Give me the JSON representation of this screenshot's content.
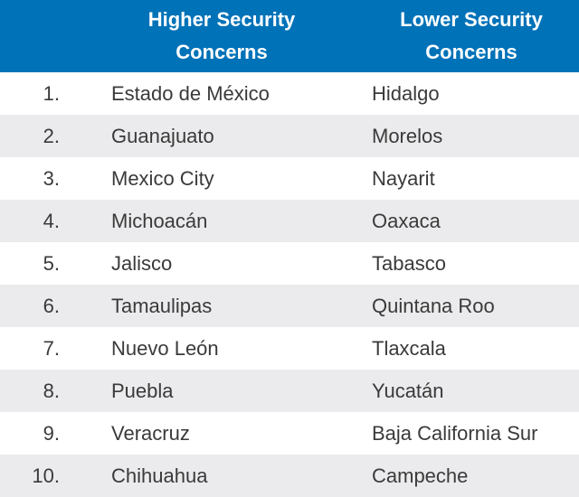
{
  "header": {
    "col1": "Higher Security\nConcerns",
    "col1_line1": "Higher Security",
    "col1_line2": "Concerns",
    "col2_line1": "Lower Security",
    "col2_line2": "Concerns"
  },
  "colors": {
    "header_bg": "#0072b8",
    "stripe": "#ebebed"
  },
  "rows": [
    {
      "rank": "1.",
      "higher": "Estado de México",
      "lower": "Hidalgo"
    },
    {
      "rank": "2.",
      "higher": "Guanajuato",
      "lower": "Morelos"
    },
    {
      "rank": "3.",
      "higher": "Mexico City",
      "lower": "Nayarit"
    },
    {
      "rank": "4.",
      "higher": "Michoacán",
      "lower": "Oaxaca"
    },
    {
      "rank": "5.",
      "higher": "Jalisco",
      "lower": "Tabasco"
    },
    {
      "rank": "6.",
      "higher": "Tamaulipas",
      "lower": "Quintana Roo"
    },
    {
      "rank": "7.",
      "higher": "Nuevo León",
      "lower": "Tlaxcala"
    },
    {
      "rank": "8.",
      "higher": "Puebla",
      "lower": "Yucatán"
    },
    {
      "rank": "9.",
      "higher": "Veracruz",
      "lower": "Baja California Sur"
    },
    {
      "rank": "10.",
      "higher": "Chihuahua",
      "lower": "Campeche"
    }
  ]
}
